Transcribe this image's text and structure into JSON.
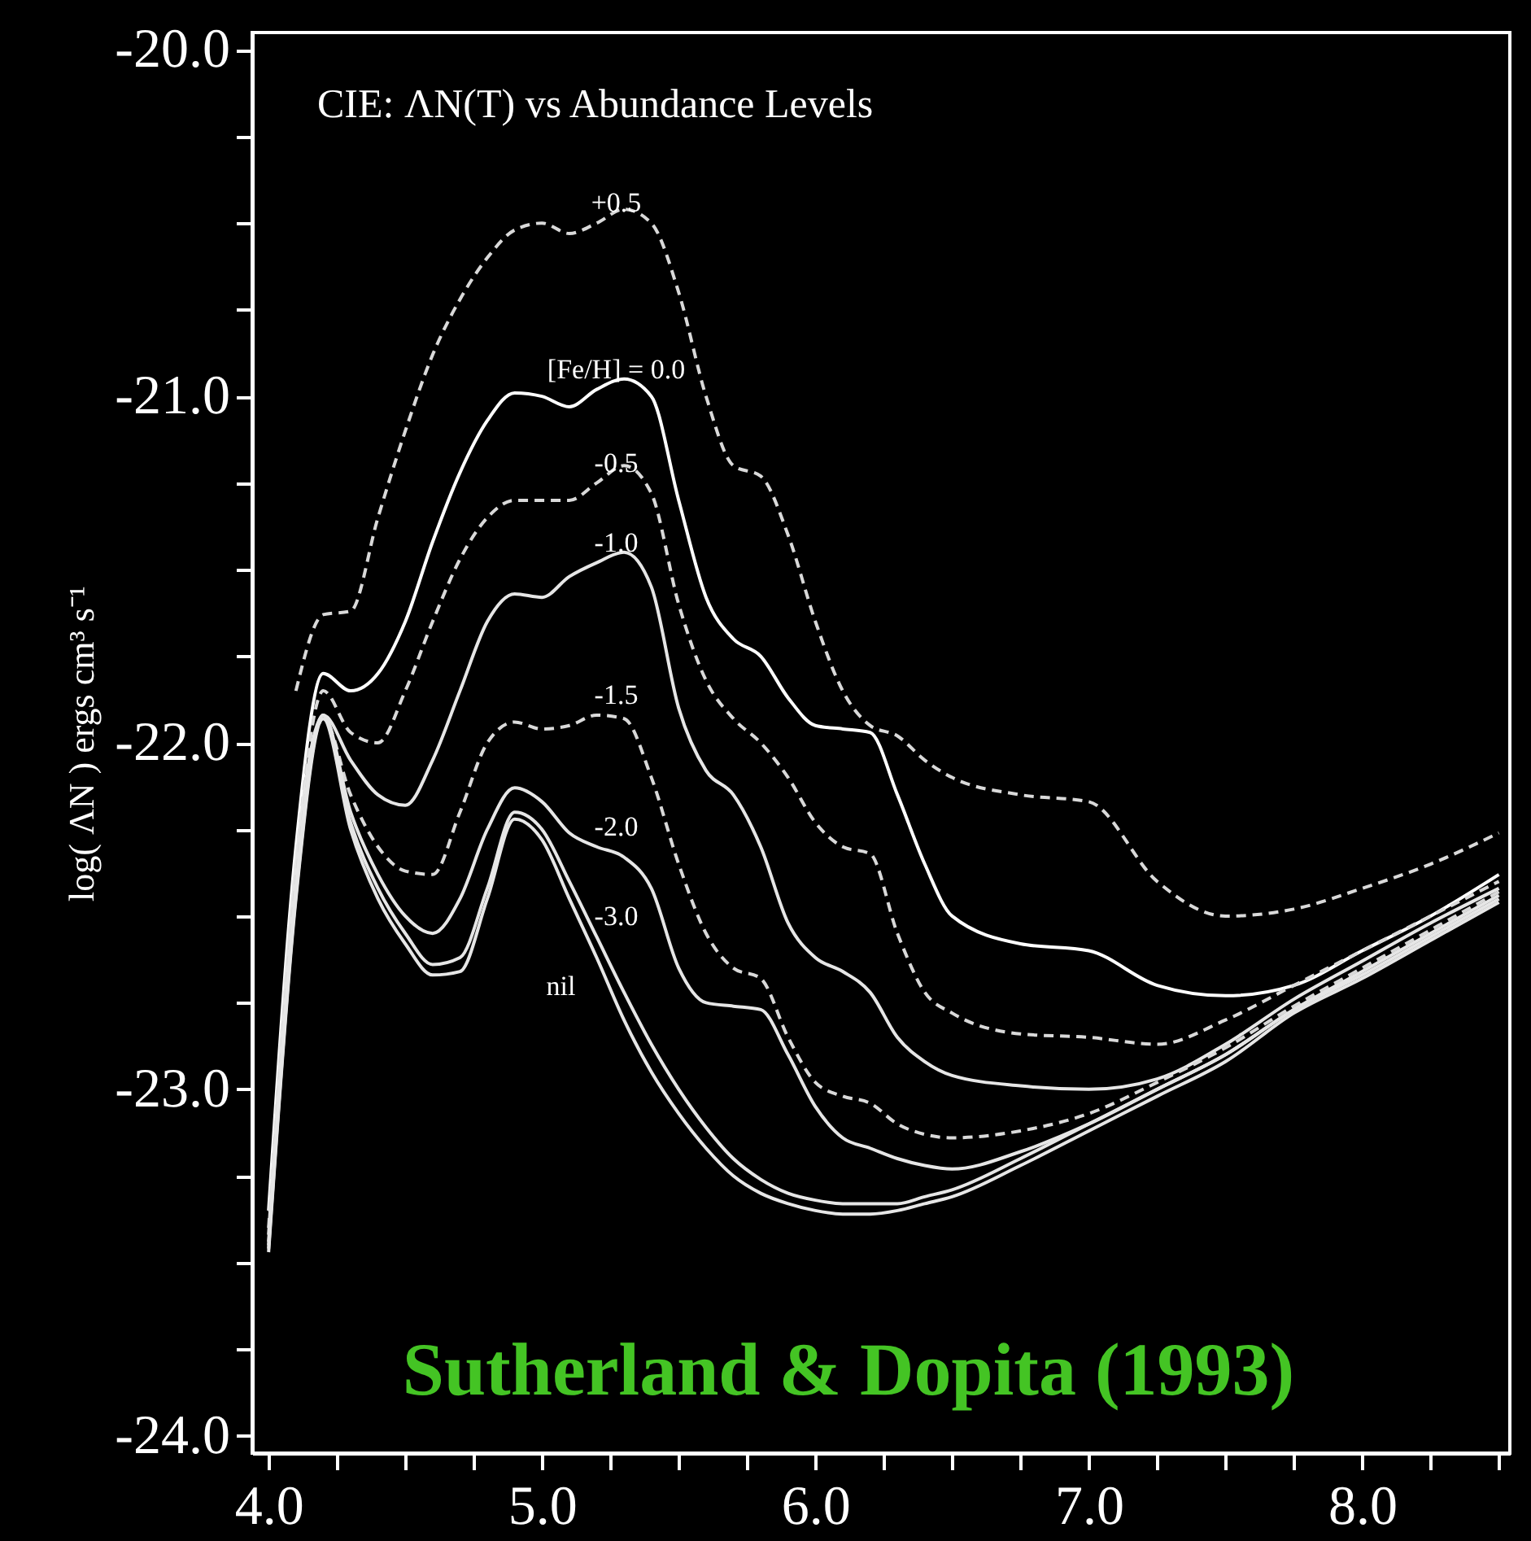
{
  "chart_data": {
    "type": "line",
    "title": "CIE:  ΛN(T) vs Abundance Levels",
    "ylabel": "log( ΛN ) ergs cm³ s⁻¹",
    "x": [
      4.0,
      4.1,
      4.2,
      4.3,
      4.4,
      4.5,
      4.6,
      4.7,
      4.8,
      4.9,
      5.0,
      5.1,
      5.2,
      5.3,
      5.4,
      5.5,
      5.6,
      5.7,
      5.8,
      5.9,
      6.0,
      6.1,
      6.2,
      6.3,
      6.4,
      6.5,
      6.75,
      7.0,
      7.25,
      7.5,
      7.75,
      8.0,
      8.25,
      8.5
    ],
    "series": [
      {
        "name": "+0.5",
        "color": "#d9d9d9",
        "line_style": "dashed",
        "x": [
          4.1,
          4.2,
          4.3,
          4.4,
          4.5,
          4.6,
          4.7,
          4.8,
          4.9,
          5.0,
          5.1,
          5.2,
          5.3,
          5.4,
          5.5,
          5.6,
          5.7,
          5.8,
          5.9,
          6.0,
          6.1,
          6.2,
          6.3,
          6.4,
          6.5,
          6.75,
          7.0,
          7.25,
          7.5,
          7.75,
          8.0,
          8.25,
          8.5
        ],
        "values": [
          -21.85,
          -21.63,
          -21.62,
          -21.35,
          -21.1,
          -20.88,
          -20.72,
          -20.6,
          -20.52,
          -20.5,
          -20.53,
          -20.5,
          -20.46,
          -20.5,
          -20.7,
          -21.0,
          -21.2,
          -21.23,
          -21.4,
          -21.65,
          -21.85,
          -21.95,
          -21.98,
          -22.05,
          -22.1,
          -22.15,
          -22.17,
          -22.4,
          -22.5,
          -22.48,
          -22.42,
          -22.35,
          -22.26
        ]
      },
      {
        "name": "[Fe/H] = 0.0",
        "color": "#ffffff",
        "line_style": "solid",
        "values": [
          -23.35,
          -22.3,
          -21.8,
          -21.85,
          -21.8,
          -21.65,
          -21.42,
          -21.22,
          -21.07,
          -20.99,
          -21.0,
          -21.03,
          -20.98,
          -20.95,
          -21.0,
          -21.3,
          -21.58,
          -21.7,
          -21.75,
          -21.87,
          -21.95,
          -21.96,
          -21.97,
          -22.15,
          -22.35,
          -22.5,
          -22.58,
          -22.6,
          -22.7,
          -22.73,
          -22.7,
          -22.6,
          -22.5,
          -22.38
        ]
      },
      {
        "name": "-0.5",
        "color": "#d9d9d9",
        "line_style": "dashed",
        "values": [
          -23.4,
          -22.35,
          -21.85,
          -21.97,
          -22.0,
          -21.85,
          -21.65,
          -21.47,
          -21.35,
          -21.3,
          -21.3,
          -21.3,
          -21.25,
          -21.2,
          -21.28,
          -21.6,
          -21.82,
          -21.93,
          -22.0,
          -22.1,
          -22.23,
          -22.3,
          -22.32,
          -22.55,
          -22.72,
          -22.78,
          -22.84,
          -22.85,
          -22.87,
          -22.8,
          -22.7,
          -22.6,
          -22.5,
          -22.4
        ]
      },
      {
        "name": "-1.0",
        "color": "#e6e6e6",
        "line_style": "solid",
        "values": [
          -23.42,
          -22.35,
          -21.92,
          -22.05,
          -22.15,
          -22.18,
          -22.05,
          -21.85,
          -21.65,
          -21.57,
          -21.58,
          -21.52,
          -21.48,
          -21.45,
          -21.55,
          -21.9,
          -22.08,
          -22.15,
          -22.3,
          -22.52,
          -22.62,
          -22.66,
          -22.72,
          -22.85,
          -22.92,
          -22.96,
          -22.99,
          -23.0,
          -22.97,
          -22.87,
          -22.74,
          -22.63,
          -22.52,
          -22.42
        ]
      },
      {
        "name": "-1.5",
        "color": "#d9d9d9",
        "line_style": "dashed",
        "values": [
          -23.44,
          -22.4,
          -21.93,
          -22.15,
          -22.3,
          -22.37,
          -22.38,
          -22.2,
          -22.0,
          -21.94,
          -21.96,
          -21.95,
          -21.92,
          -21.93,
          -22.1,
          -22.35,
          -22.55,
          -22.65,
          -22.68,
          -22.85,
          -22.98,
          -23.02,
          -23.04,
          -23.1,
          -23.13,
          -23.14,
          -23.12,
          -23.07,
          -22.98,
          -22.88,
          -22.76,
          -22.65,
          -22.54,
          -22.43
        ]
      },
      {
        "name": "-2.0",
        "color": "#e6e6e6",
        "line_style": "solid",
        "values": [
          -23.45,
          -22.42,
          -21.92,
          -22.2,
          -22.38,
          -22.5,
          -22.55,
          -22.45,
          -22.25,
          -22.13,
          -22.17,
          -22.26,
          -22.3,
          -22.33,
          -22.42,
          -22.65,
          -22.75,
          -22.76,
          -22.77,
          -22.9,
          -23.05,
          -23.14,
          -23.17,
          -23.2,
          -23.22,
          -23.23,
          -23.18,
          -23.1,
          -23.0,
          -22.9,
          -22.77,
          -22.66,
          -22.55,
          -22.44
        ]
      },
      {
        "name": "-3.0",
        "color": "#e6e6e6",
        "line_style": "solid",
        "values": [
          -23.46,
          -22.44,
          -21.92,
          -22.23,
          -22.42,
          -22.55,
          -22.64,
          -22.62,
          -22.42,
          -22.2,
          -22.25,
          -22.4,
          -22.56,
          -22.72,
          -22.87,
          -23.0,
          -23.11,
          -23.2,
          -23.26,
          -23.3,
          -23.32,
          -23.33,
          -23.33,
          -23.33,
          -23.31,
          -23.29,
          -23.2,
          -23.1,
          -23.0,
          -22.9,
          -22.77,
          -22.67,
          -22.56,
          -22.45
        ]
      },
      {
        "name": "nil",
        "color": "#e6e6e6",
        "line_style": "solid",
        "values": [
          -23.47,
          -22.45,
          -21.93,
          -22.25,
          -22.45,
          -22.58,
          -22.67,
          -22.66,
          -22.45,
          -22.22,
          -22.28,
          -22.45,
          -22.62,
          -22.8,
          -22.95,
          -23.07,
          -23.17,
          -23.25,
          -23.3,
          -23.33,
          -23.35,
          -23.36,
          -23.36,
          -23.35,
          -23.33,
          -23.31,
          -23.22,
          -23.12,
          -23.02,
          -22.92,
          -22.78,
          -22.68,
          -22.57,
          -22.46
        ]
      }
    ],
    "xlim": [
      3.94,
      8.54
    ],
    "ylim": [
      -24.05,
      -19.95
    ],
    "xticks": [
      {
        "value": 4,
        "label": "4.0"
      },
      {
        "value": 4.25,
        "label": null
      },
      {
        "value": 4.5,
        "label": null
      },
      {
        "value": 4.75,
        "label": null
      },
      {
        "value": 5,
        "label": "5.0"
      },
      {
        "value": 5.25,
        "label": null
      },
      {
        "value": 5.5,
        "label": null
      },
      {
        "value": 5.75,
        "label": null
      },
      {
        "value": 6,
        "label": "6.0"
      },
      {
        "value": 6.25,
        "label": null
      },
      {
        "value": 6.5,
        "label": null
      },
      {
        "value": 6.75,
        "label": null
      },
      {
        "value": 7,
        "label": "7.0"
      },
      {
        "value": 7.25,
        "label": null
      },
      {
        "value": 7.5,
        "label": null
      },
      {
        "value": 7.75,
        "label": null
      },
      {
        "value": 8,
        "label": "8.0"
      },
      {
        "value": 8.25,
        "label": null
      },
      {
        "value": 8.5,
        "label": null
      }
    ],
    "yticks": [
      {
        "value": -20,
        "label": "-20.0"
      },
      {
        "value": -20.25,
        "label": null
      },
      {
        "value": -20.5,
        "label": null
      },
      {
        "value": -20.75,
        "label": null
      },
      {
        "value": -21,
        "label": "-21.0"
      },
      {
        "value": -21.25,
        "label": null
      },
      {
        "value": -21.5,
        "label": null
      },
      {
        "value": -21.75,
        "label": null
      },
      {
        "value": -22,
        "label": "-22.0"
      },
      {
        "value": -22.25,
        "label": null
      },
      {
        "value": -22.5,
        "label": null
      },
      {
        "value": -22.75,
        "label": null
      },
      {
        "value": -23,
        "label": "-23.0"
      },
      {
        "value": -23.25,
        "label": null
      },
      {
        "value": -23.5,
        "label": null
      },
      {
        "value": -23.75,
        "label": null
      },
      {
        "value": -24,
        "label": "-24.0"
      }
    ],
    "annotations": [
      "Sutherland & Dopita (1993)"
    ],
    "grid": false
  }
}
